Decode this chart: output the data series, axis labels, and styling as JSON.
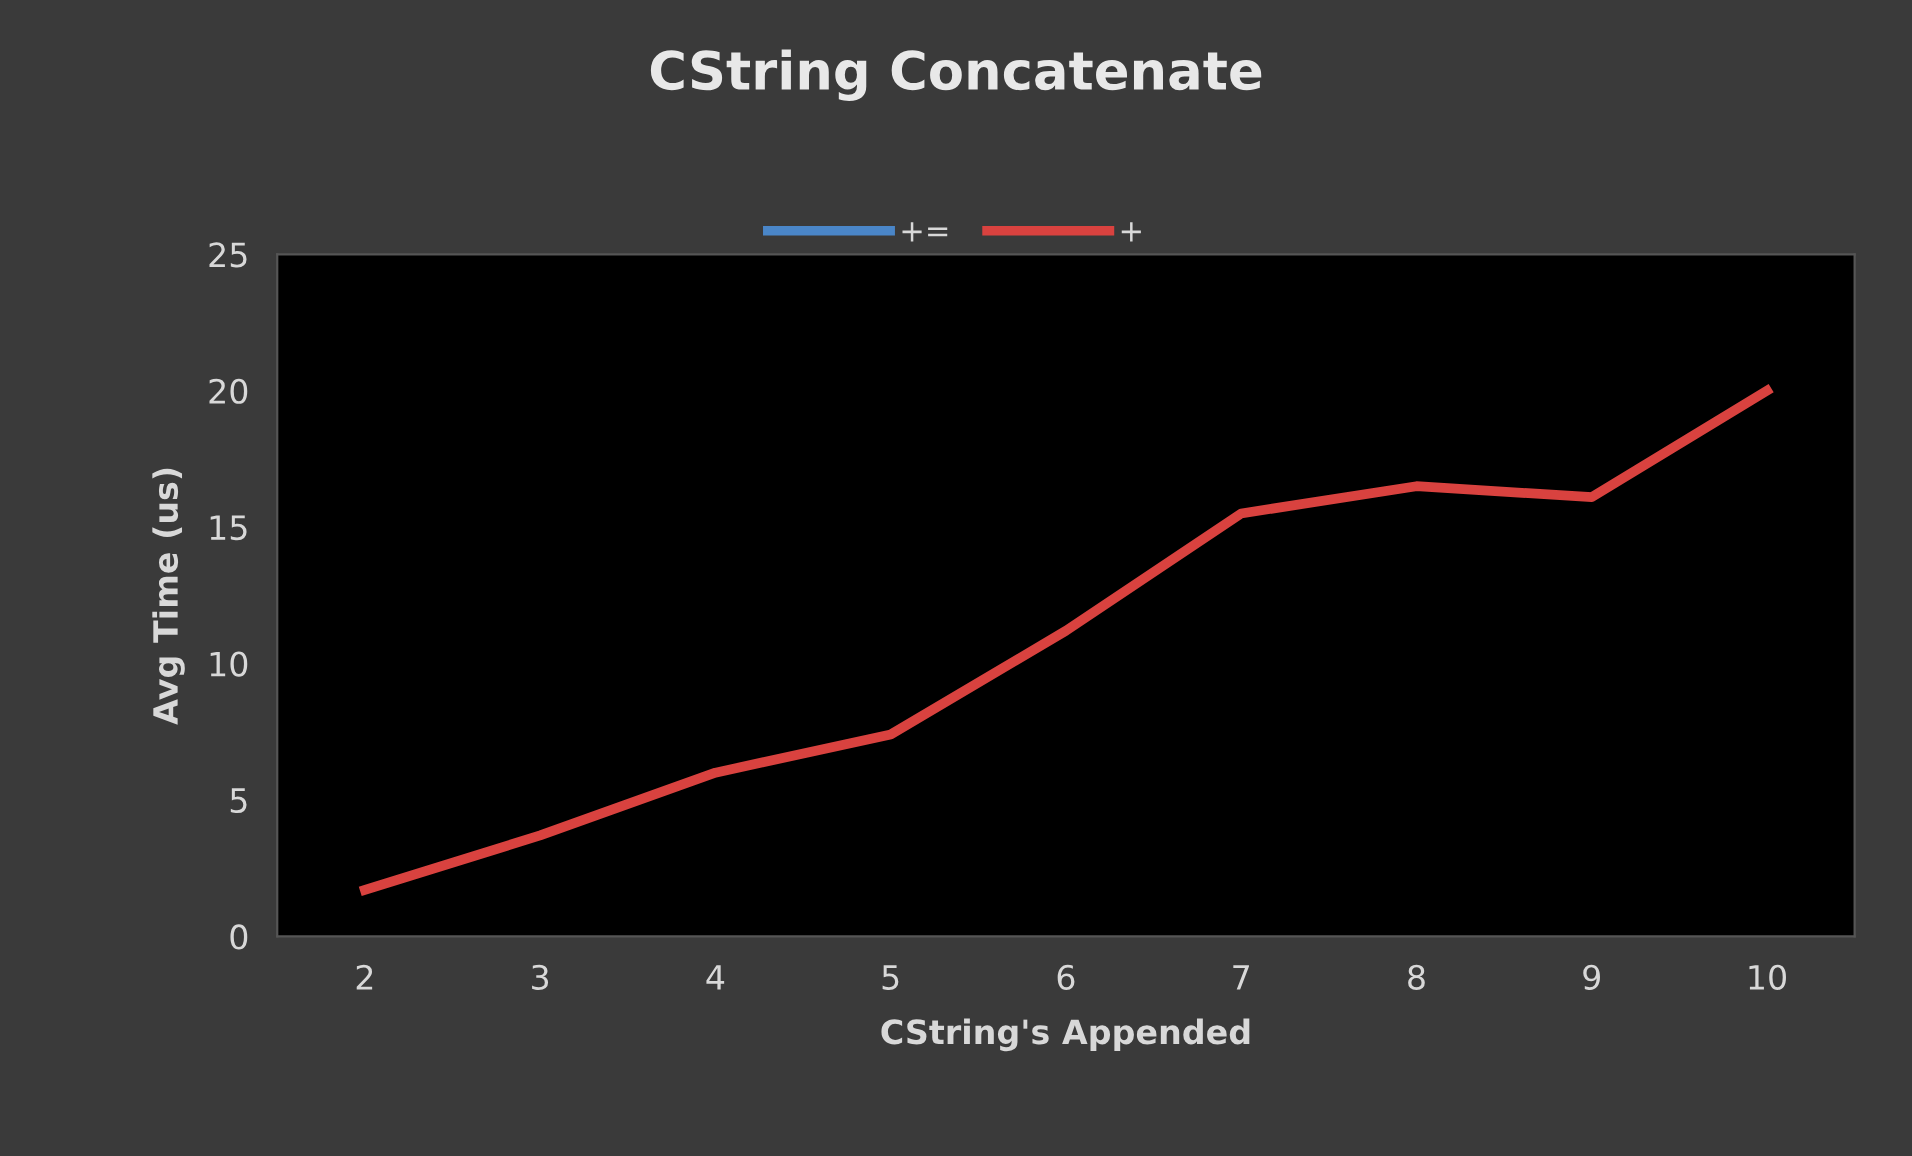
{
  "chart_data": {
    "type": "line",
    "title": "CString Concatenate",
    "xlabel": "CString's Appended",
    "ylabel": "Avg Time (us)",
    "categories": [
      "2",
      "3",
      "4",
      "5",
      "6",
      "7",
      "8",
      "9",
      "10"
    ],
    "series": [
      {
        "name": "+=",
        "color": "#4a86c8",
        "values": [
          null,
          null,
          null,
          null,
          null,
          null,
          null,
          null,
          null
        ]
      },
      {
        "name": "+",
        "color": "#d9423f",
        "values": [
          1.7,
          3.7,
          6.0,
          7.4,
          11.2,
          15.5,
          16.5,
          16.1,
          20.0
        ]
      }
    ],
    "ylim": [
      0,
      25
    ],
    "yticks": [
      0,
      5,
      10,
      15,
      20,
      25
    ],
    "grid": false,
    "legend": "top",
    "marker": "none",
    "line_style": "solid"
  }
}
